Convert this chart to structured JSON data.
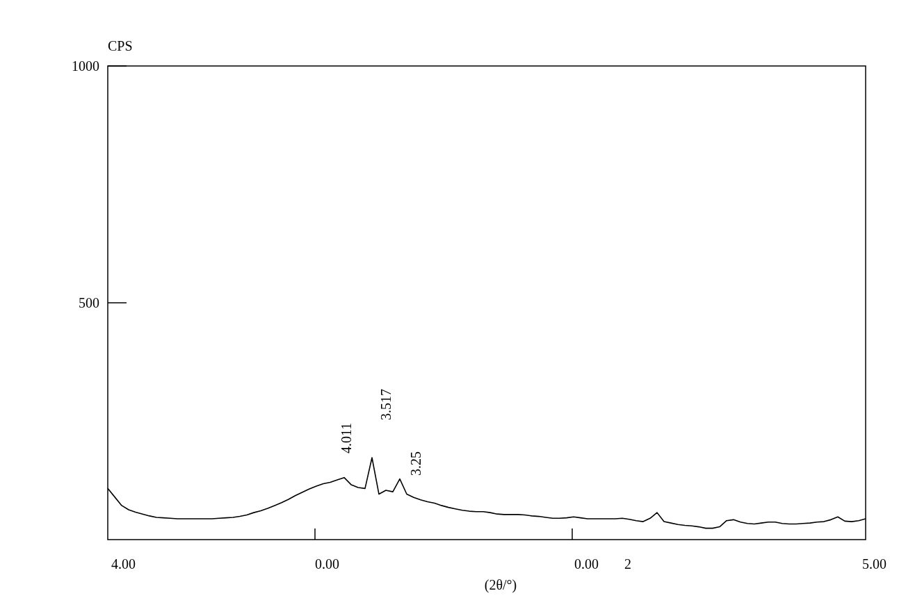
{
  "chart_data": {
    "type": "line",
    "ylabel": "CPS",
    "xlabel": "(2θ/°)",
    "color": "#000000",
    "marker": "none",
    "ylim": [
      0,
      1000
    ],
    "yticks": [
      500,
      1000
    ],
    "categories": [
      null,
      null,
      null,
      null,
      null,
      null,
      null,
      null,
      null,
      null,
      null,
      null,
      null,
      null,
      null,
      null,
      null,
      null,
      null,
      null,
      null,
      null,
      null,
      null,
      null,
      null,
      null,
      null,
      null,
      null,
      null,
      null,
      null,
      null,
      null,
      null,
      null,
      null,
      null,
      null,
      null,
      null,
      null,
      null,
      null,
      null,
      null,
      null,
      null,
      null,
      null,
      null,
      null,
      null,
      null,
      null,
      null,
      null,
      null,
      null,
      null,
      null,
      null,
      null,
      null,
      null,
      null,
      null,
      null,
      null,
      null,
      null,
      null,
      null,
      null,
      null,
      null,
      null,
      null,
      null,
      null,
      null,
      null,
      null,
      null,
      null,
      null,
      null,
      null,
      null,
      null,
      null,
      null,
      null,
      null,
      null,
      null,
      null,
      null,
      null,
      null,
      null,
      null,
      null,
      null,
      null,
      null,
      null,
      null,
      null
    ],
    "values": [
      108,
      90,
      72,
      63,
      58,
      54,
      50,
      47,
      46,
      45,
      44,
      44,
      44,
      44,
      44,
      44,
      45,
      46,
      47,
      49,
      52,
      57,
      61,
      66,
      72,
      78,
      85,
      93,
      100,
      107,
      113,
      118,
      121,
      126,
      131,
      116,
      110,
      108,
      173,
      96,
      104,
      101,
      128,
      96,
      89,
      84,
      80,
      77,
      72,
      68,
      65,
      62,
      60,
      59,
      59,
      57,
      54,
      53,
      53,
      53,
      52,
      50,
      49,
      47,
      45,
      45,
      46,
      48,
      46,
      44,
      44,
      44,
      44,
      44,
      45,
      43,
      40,
      38,
      45,
      57,
      38,
      35,
      32,
      30,
      29,
      27,
      24,
      24,
      27,
      40,
      42,
      37,
      34,
      33,
      35,
      37,
      37,
      34,
      33,
      33,
      34,
      35,
      37,
      38,
      42,
      48,
      39,
      38,
      40,
      44
    ],
    "annotations": [
      "4.011",
      "3.517",
      "3.25",
      "4.00",
      "0.00",
      "0.00",
      "2",
      "5.00"
    ]
  }
}
